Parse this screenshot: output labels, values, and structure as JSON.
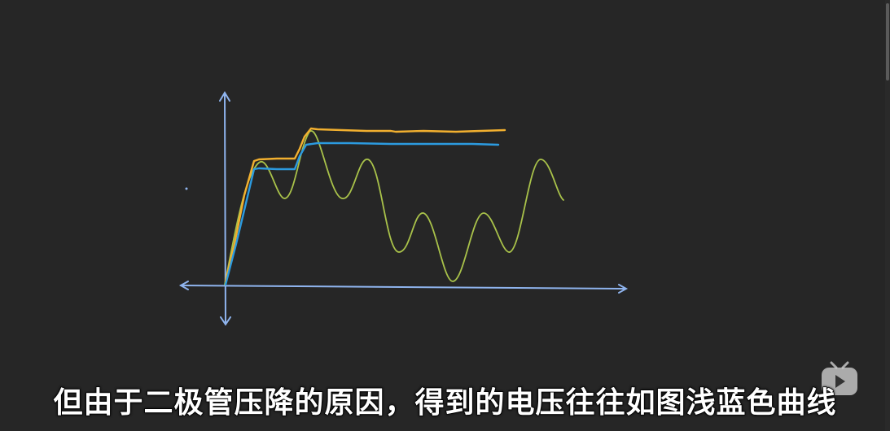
{
  "subtitle": "但由于二极管压降的原因，得到的电压往往如图浅蓝色曲线",
  "colors": {
    "background": "#262626",
    "axis": "#8fb4ee",
    "orange_curve": "#f2b02f",
    "blue_curve": "#2c9be0",
    "green_curve": "#a9c24a"
  },
  "icons": {
    "watermark": "bilibili-tv-icon"
  }
}
